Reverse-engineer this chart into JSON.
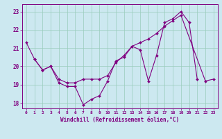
{
  "xlabel": "Windchill (Refroidissement éolien,°C)",
  "background_color": "#cce8f0",
  "line_color": "#800080",
  "grid_color": "#99ccbb",
  "main_x": [
    0,
    1,
    2,
    3,
    4,
    5,
    6,
    7,
    8,
    9,
    10,
    11,
    12,
    13,
    14,
    15,
    16,
    17,
    18,
    19,
    20,
    21
  ],
  "main_y": [
    21.3,
    20.4,
    19.8,
    20.0,
    19.1,
    18.9,
    18.9,
    17.9,
    18.2,
    18.4,
    19.2,
    20.3,
    20.5,
    21.1,
    20.9,
    19.2,
    20.6,
    22.4,
    22.6,
    23.0,
    22.4,
    19.3
  ],
  "grad_x": [
    1,
    2,
    3,
    4,
    5,
    6,
    7,
    8,
    9,
    10,
    11,
    12,
    13,
    14,
    15,
    16,
    17,
    18,
    19,
    22,
    23
  ],
  "grad_y": [
    20.4,
    19.8,
    20.0,
    19.3,
    19.1,
    19.1,
    19.3,
    19.3,
    19.3,
    19.5,
    20.2,
    20.6,
    21.1,
    21.3,
    21.5,
    21.8,
    22.2,
    22.5,
    22.8,
    19.2,
    19.3
  ],
  "ylim": [
    17.7,
    23.4
  ],
  "xlim": [
    -0.5,
    23.5
  ],
  "yticks": [
    18,
    19,
    20,
    21,
    22,
    23
  ],
  "xticks": [
    0,
    1,
    2,
    3,
    4,
    5,
    6,
    7,
    8,
    9,
    10,
    11,
    12,
    13,
    14,
    15,
    16,
    17,
    18,
    19,
    20,
    21,
    22,
    23
  ]
}
